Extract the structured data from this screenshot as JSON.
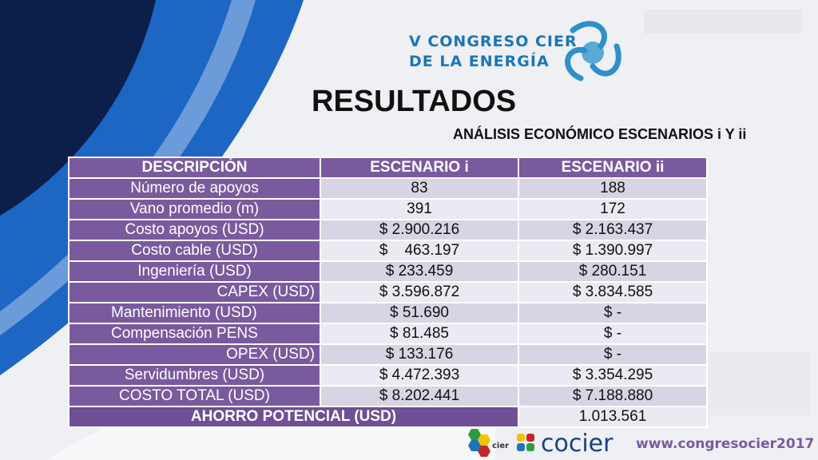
{
  "logo": {
    "line1": "V CONGRESO CIER",
    "line2": "DE LA ENERGÍA"
  },
  "title": "RESULTADOS",
  "subtitle": "ANÁLISIS ECONÓMICO ESCENARIOS i Y ii",
  "table": {
    "headers": [
      "DESCRIPCIÓN",
      "ESCENARIO i",
      "ESCENARIO ii"
    ],
    "rows": [
      {
        "desc": "Número de apoyos",
        "i": "83",
        "ii": "188"
      },
      {
        "desc": "Vano promedio (m)",
        "i": "391",
        "ii": "172"
      },
      {
        "desc": "Costo apoyos (USD)",
        "i": "$ 2.900.216",
        "ii": "$ 2.163.437"
      },
      {
        "desc": "Costo cable (USD)",
        "i": "$    463.197",
        "ii": "$ 1.390.997"
      },
      {
        "desc": "Ingeniería (USD)",
        "i": "$ 233.459",
        "ii": "$ 280.151"
      },
      {
        "desc": "CAPEX (USD)",
        "i": "$ 3.596.872",
        "ii": "$ 3.834.585"
      },
      {
        "desc": "Mantenimiento (USD)",
        "i": "$ 51.690",
        "ii": "$ -"
      },
      {
        "desc": "Compensación PENS",
        "i": "$ 81.485",
        "ii": "$ -"
      },
      {
        "desc": "OPEX (USD)",
        "i": "$ 133.176",
        "ii": "$ -"
      },
      {
        "desc": "Servidumbres (USD)",
        "i": "$ 4.472.393",
        "ii": "$ 3.354.295"
      },
      {
        "desc": "COSTO TOTAL (USD)",
        "i": "$ 8.202.441",
        "ii": "$ 7.188.880"
      }
    ],
    "total": {
      "label": "AHORRO POTENCIAL (USD)",
      "value": "1.013.561"
    }
  },
  "footer": {
    "cier_logo_text": "cier",
    "cocier": "cocier",
    "url": "www.congresocier2017"
  },
  "colors": {
    "accent": "#7a5a9e",
    "blue": "#1c75b8",
    "dark_blue": "#1d3f8a"
  }
}
